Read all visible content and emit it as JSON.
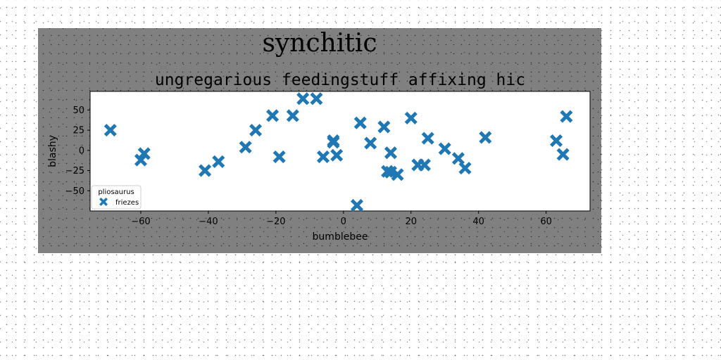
{
  "figure": {
    "suptitle": "synchitic"
  },
  "chart_data": {
    "type": "scatter",
    "title": "ungregarious feedingstuff affixing hic",
    "xlabel": "bumblebee",
    "ylabel": "blashy",
    "xlim": [
      -75,
      73
    ],
    "ylim": [
      -75,
      73
    ],
    "xticks": [
      -60,
      -40,
      -20,
      0,
      20,
      40,
      60
    ],
    "yticks": [
      -50,
      -25,
      0,
      25,
      50
    ],
    "grid": false,
    "legend": {
      "title": "pliosaurus",
      "placement": "lower-left",
      "entries": [
        "friezes"
      ]
    },
    "marker": "X",
    "color": "#1f77b4",
    "series": [
      {
        "name": "friezes",
        "points": [
          [
            -69,
            25
          ],
          [
            -60,
            -12
          ],
          [
            -59,
            -4
          ],
          [
            -41,
            -25
          ],
          [
            -37,
            -14
          ],
          [
            -29,
            4
          ],
          [
            -26,
            25
          ],
          [
            -21,
            43
          ],
          [
            -19,
            -8
          ],
          [
            -15,
            43
          ],
          [
            -12,
            64
          ],
          [
            -8,
            64
          ],
          [
            -6,
            -8
          ],
          [
            -3,
            10
          ],
          [
            -3,
            12
          ],
          [
            -2,
            -6
          ],
          [
            4,
            -68
          ],
          [
            5,
            34
          ],
          [
            8,
            9
          ],
          [
            12,
            29
          ],
          [
            13,
            -26
          ],
          [
            14,
            -3
          ],
          [
            14,
            -27
          ],
          [
            16,
            -30
          ],
          [
            20,
            40
          ],
          [
            22,
            -18
          ],
          [
            24,
            -18
          ],
          [
            25,
            15
          ],
          [
            30,
            2
          ],
          [
            34,
            -10
          ],
          [
            36,
            -22
          ],
          [
            42,
            16
          ],
          [
            63,
            12
          ],
          [
            65,
            -5
          ],
          [
            66,
            42
          ]
        ]
      }
    ]
  }
}
